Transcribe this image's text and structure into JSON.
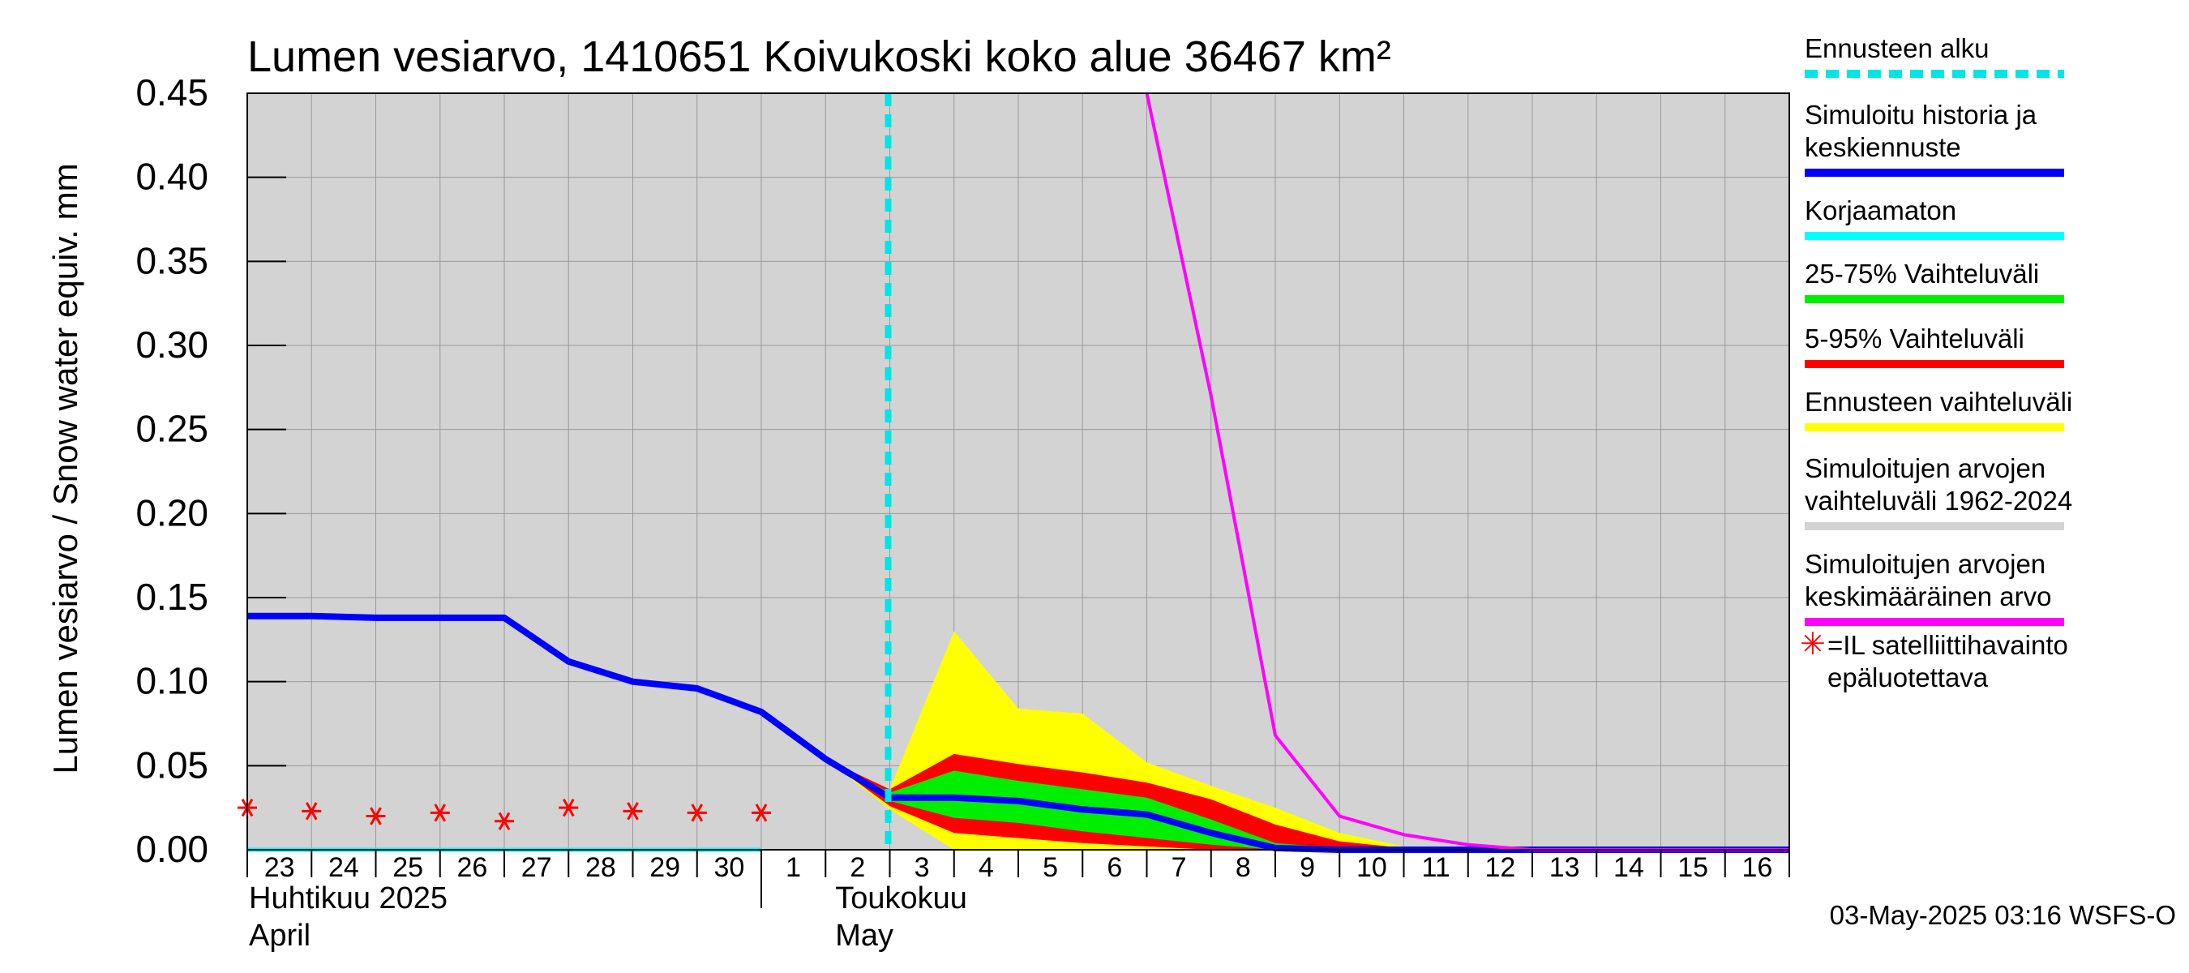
{
  "chart_data": {
    "type": "area",
    "title": "Lumen vesiarvo, 1410651 Koivukoski koko alue 36467 km²",
    "ylabel": "Lumen vesiarvo / Snow water equiv.    mm",
    "ylim": [
      0,
      0.45
    ],
    "yticks": [
      "0.00",
      "0.05",
      "0.10",
      "0.15",
      "0.20",
      "0.25",
      "0.30",
      "0.35",
      "0.40",
      "0.45"
    ],
    "xlim": [
      "2025-04-23",
      "2025-05-17"
    ],
    "x_tick_labels": [
      "23",
      "24",
      "25",
      "26",
      "27",
      "28",
      "29",
      "30",
      "1",
      "2",
      "3",
      "4",
      "5",
      "6",
      "7",
      "8",
      "9",
      "10",
      "11",
      "12",
      "13",
      "14",
      "15",
      "16"
    ],
    "month_labels": [
      {
        "fi": "Huhtikuu  2025",
        "en": "April"
      },
      {
        "fi": "Toukokuu",
        "en": "May"
      }
    ],
    "forecast_start": "2025-05-03",
    "grid": true,
    "series": [
      {
        "name": "Simuloitu historia ja keskiennuste",
        "color": "#0000ff",
        "x": [
          "2025-04-23",
          "2025-04-24",
          "2025-04-25",
          "2025-04-26",
          "2025-04-27",
          "2025-04-28",
          "2025-04-29",
          "2025-04-30",
          "2025-05-01",
          "2025-05-02",
          "2025-05-03",
          "2025-05-04",
          "2025-05-05",
          "2025-05-06",
          "2025-05-07",
          "2025-05-08",
          "2025-05-09",
          "2025-05-10",
          "2025-05-11",
          "2025-05-12",
          "2025-05-13",
          "2025-05-14",
          "2025-05-15",
          "2025-05-16",
          "2025-05-17"
        ],
        "y": [
          0.139,
          0.139,
          0.138,
          0.138,
          0.138,
          0.112,
          0.1,
          0.096,
          0.082,
          0.054,
          0.031,
          0.031,
          0.029,
          0.024,
          0.021,
          0.01,
          0.001,
          0.0,
          0.0,
          0.0,
          0.0,
          0.0,
          0.0,
          0.0,
          0.0
        ]
      },
      {
        "name": "Korjaamaton",
        "color": "#00ffff",
        "x": [
          "2025-04-23",
          "2025-05-01"
        ],
        "y": [
          0.0,
          0.0
        ]
      },
      {
        "name": "Simuloitujen arvojen keskimääräinen arvo",
        "color": "#ff00ff",
        "x": [
          "2025-05-07",
          "2025-05-08",
          "2025-05-09",
          "2025-05-10",
          "2025-05-11",
          "2025-05-12",
          "2025-05-13",
          "2025-05-14",
          "2025-05-15",
          "2025-05-16",
          "2025-05-17"
        ],
        "y": [
          0.45,
          0.27,
          0.068,
          0.02,
          0.009,
          0.003,
          0.0,
          0.0,
          0.0,
          0.0,
          0.0
        ]
      }
    ],
    "bands": [
      {
        "name": "Ennusteen vaihteluväli",
        "color": "#ffff00",
        "x": [
          "2025-05-02",
          "2025-05-03",
          "2025-05-04",
          "2025-05-05",
          "2025-05-06",
          "2025-05-07",
          "2025-05-08",
          "2025-05-09",
          "2025-05-10",
          "2025-05-11",
          "2025-05-12",
          "2025-05-13"
        ],
        "low": [
          0.054,
          0.024,
          0.0,
          0.0,
          0.0,
          0.0,
          0.0,
          0.0,
          0.0,
          0.0,
          0.0,
          0.0
        ],
        "high": [
          0.054,
          0.036,
          0.13,
          0.084,
          0.081,
          0.052,
          0.038,
          0.025,
          0.01,
          0.002,
          0.0,
          0.0
        ]
      },
      {
        "name": "5-95% Vaihteluväli",
        "color": "#ff0000",
        "x": [
          "2025-05-02",
          "2025-05-03",
          "2025-05-04",
          "2025-05-05",
          "2025-05-06",
          "2025-05-07",
          "2025-05-08",
          "2025-05-09",
          "2025-05-10",
          "2025-05-11",
          "2025-05-12",
          "2025-05-13"
        ],
        "low": [
          0.054,
          0.026,
          0.01,
          0.007,
          0.004,
          0.002,
          0.0,
          0.0,
          0.0,
          0.0,
          0.0,
          0.0
        ],
        "high": [
          0.054,
          0.036,
          0.057,
          0.051,
          0.046,
          0.04,
          0.03,
          0.015,
          0.005,
          0.001,
          0.0,
          0.0
        ]
      },
      {
        "name": "25-75% Vaihteluväli",
        "color": "#00ee00",
        "x": [
          "2025-05-02",
          "2025-05-03",
          "2025-05-04",
          "2025-05-05",
          "2025-05-06",
          "2025-05-07",
          "2025-05-08",
          "2025-05-09",
          "2025-05-10",
          "2025-05-11",
          "2025-05-12",
          "2025-05-13"
        ],
        "low": [
          0.054,
          0.029,
          0.019,
          0.016,
          0.011,
          0.007,
          0.003,
          0.0,
          0.0,
          0.0,
          0.0,
          0.0
        ],
        "high": [
          0.054,
          0.034,
          0.047,
          0.041,
          0.036,
          0.031,
          0.018,
          0.004,
          0.001,
          0.0,
          0.0,
          0.0
        ]
      }
    ],
    "scatter": {
      "name": "=IL satelliittihavainto epäluotettava",
      "color": "#ff0000",
      "marker": "asterisk",
      "x": [
        "2025-04-23",
        "2025-04-24",
        "2025-04-25",
        "2025-04-26",
        "2025-04-27",
        "2025-04-28",
        "2025-04-29",
        "2025-04-30",
        "2025-05-01"
      ],
      "y": [
        0.025,
        0.023,
        0.02,
        0.022,
        0.017,
        0.025,
        0.023,
        0.022,
        0.022
      ]
    },
    "background": {
      "name": "Simuloitujen arvojen vaihteluväli 1962-2024",
      "color": "#d3d3d3"
    }
  },
  "legend": [
    {
      "key": "start",
      "label": "Ennusteen alku",
      "color": "#00e5e5",
      "style": "dashed"
    },
    {
      "key": "sim",
      "label": "Simuloitu historia ja\nkeskiennuste",
      "color": "#0000ff",
      "style": "solid"
    },
    {
      "key": "raw",
      "label": "Korjaamaton",
      "color": "#00ffff",
      "style": "solid"
    },
    {
      "key": "p2575",
      "label": "25-75% Vaihteluväli",
      "color": "#00ee00",
      "style": "solid"
    },
    {
      "key": "p595",
      "label": "5-95% Vaihteluväli",
      "color": "#ff0000",
      "style": "solid"
    },
    {
      "key": "range",
      "label": "Ennusteen vaihteluväli",
      "color": "#ffff00",
      "style": "solid"
    },
    {
      "key": "hist",
      "label": "Simuloitujen arvojen\nvaihteluväli 1962-2024",
      "color": "#d3d3d3",
      "style": "solid"
    },
    {
      "key": "mean",
      "label": "Simuloitujen arvojen\nkeskimääräinen arvo",
      "color": "#ff00ff",
      "style": "solid"
    },
    {
      "key": "sat",
      "label": "=IL satelliittihavainto\nepäluotettava",
      "color": "#ff0000",
      "style": "asterisk"
    }
  ],
  "footer": "03-May-2025 03:16 WSFS-O"
}
